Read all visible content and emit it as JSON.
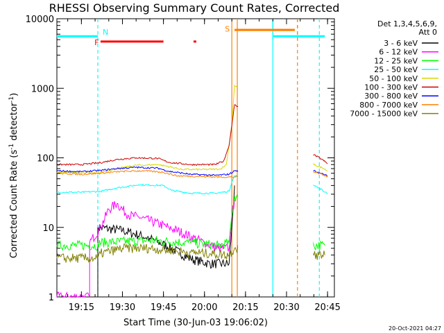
{
  "chart_data": {
    "type": "line",
    "title": "RHESSI Observing Summary Count Rates, Corrected",
    "xlabel": "Start Time (30-Jun-03 19:06:02)",
    "ylabel": "Corrected Count Rate (s",
    "ylabel_sup": "-1",
    "ylabel_mid": " detector",
    "ylabel_sup2": "-1",
    "ylabel_end": ")",
    "y_scale": "log",
    "xlim": [
      "19:06:02",
      "20:47:30"
    ],
    "ylim": [
      1,
      10000
    ],
    "x_ticks": [
      "19:15",
      "19:30",
      "19:45",
      "20:00",
      "20:15",
      "20:30",
      "20:45"
    ],
    "y_ticks": [
      "1",
      "10",
      "100",
      "1000",
      "10000"
    ],
    "grid": false,
    "legend_position": "top-right",
    "legend_header": [
      "Det 1,3,4,5,6,9,",
      "Att 0"
    ],
    "series": [
      {
        "name": "3 - 6 keV",
        "color": "#000000",
        "points": [
          [
            "19:21",
            1
          ],
          [
            "19:21",
            10
          ],
          [
            "19:30",
            9
          ],
          [
            "19:40",
            7
          ],
          [
            "19:48",
            5
          ],
          [
            "19:55",
            3.5
          ],
          [
            "20:02",
            3
          ],
          [
            "20:09",
            3
          ],
          [
            "20:10",
            10
          ],
          [
            "20:11",
            40
          ]
        ]
      },
      {
        "name": "6 - 12 keV",
        "color": "#ff00ff",
        "points": [
          [
            "19:06",
            1
          ],
          [
            "19:18",
            1
          ],
          [
            "19:18",
            6
          ],
          [
            "19:22",
            10
          ],
          [
            "19:25",
            18
          ],
          [
            "19:28",
            22
          ],
          [
            "19:32",
            15
          ],
          [
            "19:36",
            14
          ],
          [
            "19:41",
            12
          ],
          [
            "19:47",
            10
          ],
          [
            "19:53",
            8
          ],
          [
            "20:00",
            6
          ],
          [
            "20:05",
            5
          ],
          [
            "20:09",
            5
          ],
          [
            "20:10",
            15
          ],
          [
            "20:11",
            25
          ]
        ]
      },
      {
        "name": "12 - 25 keV",
        "color": "#00ff00",
        "points": [
          [
            "19:06",
            5.5
          ],
          [
            "19:21",
            5.5
          ],
          [
            "19:21",
            6
          ],
          [
            "19:40",
            6.5
          ],
          [
            "19:55",
            6
          ],
          [
            "20:05",
            5.5
          ],
          [
            "20:09",
            6
          ],
          [
            "20:10",
            15
          ],
          [
            "20:11",
            28
          ],
          [
            "20:40",
            5.5
          ],
          [
            "20:44",
            5.5
          ]
        ]
      },
      {
        "name": "25 - 50 keV",
        "color": "#00ffff",
        "points": [
          [
            "19:06",
            32
          ],
          [
            "19:15",
            32
          ],
          [
            "19:22",
            33
          ],
          [
            "19:28",
            37
          ],
          [
            "19:36",
            41
          ],
          [
            "19:45",
            40
          ],
          [
            "19:48",
            34
          ],
          [
            "19:55",
            31
          ],
          [
            "20:04",
            31
          ],
          [
            "20:09",
            33
          ],
          [
            "20:10",
            45
          ],
          [
            "20:11",
            55
          ],
          [
            "20:40",
            40
          ],
          [
            "20:43",
            35
          ],
          [
            "20:45",
            30
          ]
        ]
      },
      {
        "name": "50 - 100 keV",
        "color": "#d8d800",
        "points": [
          [
            "19:06",
            62
          ],
          [
            "19:21",
            60
          ],
          [
            "19:28",
            70
          ],
          [
            "19:35",
            78
          ],
          [
            "19:43",
            80
          ],
          [
            "19:46",
            76
          ],
          [
            "19:52",
            68
          ],
          [
            "20:00",
            68
          ],
          [
            "20:06",
            69
          ],
          [
            "20:08",
            80
          ],
          [
            "20:10",
            300
          ],
          [
            "20:11",
            1100
          ],
          [
            "20:40",
            80
          ],
          [
            "20:43",
            72
          ],
          [
            "20:45",
            65
          ]
        ]
      },
      {
        "name": "100 - 300 keV",
        "color": "#cc0000",
        "points": [
          [
            "19:06",
            80
          ],
          [
            "19:15",
            80
          ],
          [
            "19:22",
            85
          ],
          [
            "19:28",
            95
          ],
          [
            "19:35",
            100
          ],
          [
            "19:43",
            98
          ],
          [
            "19:47",
            86
          ],
          [
            "19:55",
            80
          ],
          [
            "20:04",
            80
          ],
          [
            "20:07",
            90
          ],
          [
            "20:09",
            150
          ],
          [
            "20:11",
            580
          ],
          [
            "20:40",
            110
          ],
          [
            "20:43",
            95
          ],
          [
            "20:45",
            82
          ]
        ]
      },
      {
        "name": "300 - 800 keV",
        "color": "#0000ff",
        "points": [
          [
            "19:06",
            65
          ],
          [
            "19:15",
            63
          ],
          [
            "19:22",
            66
          ],
          [
            "19:28",
            70
          ],
          [
            "19:35",
            73
          ],
          [
            "19:43",
            71
          ],
          [
            "19:47",
            64
          ],
          [
            "19:55",
            58
          ],
          [
            "20:04",
            56
          ],
          [
            "20:09",
            58
          ],
          [
            "20:11",
            65
          ],
          [
            "20:40",
            65
          ],
          [
            "20:43",
            60
          ],
          [
            "20:45",
            55
          ]
        ]
      },
      {
        "name": "800 - 7000 keV",
        "color": "#ff8000",
        "points": [
          [
            "19:06",
            60
          ],
          [
            "19:15",
            58
          ],
          [
            "19:22",
            60
          ],
          [
            "19:30",
            64
          ],
          [
            "19:38",
            65
          ],
          [
            "19:45",
            62
          ],
          [
            "19:50",
            55
          ],
          [
            "19:58",
            54
          ],
          [
            "20:04",
            53
          ],
          [
            "20:11",
            53
          ],
          [
            "20:40",
            62
          ],
          [
            "20:43",
            58
          ],
          [
            "20:45",
            54
          ]
        ]
      },
      {
        "name": "7000 - 15000 keV",
        "color": "#808000",
        "points": [
          [
            "19:06",
            3.6
          ],
          [
            "19:21",
            3.6
          ],
          [
            "19:22",
            4.2
          ],
          [
            "19:30",
            5
          ],
          [
            "19:40",
            5
          ],
          [
            "19:48",
            4.6
          ],
          [
            "19:55",
            4.4
          ],
          [
            "20:02",
            4.2
          ],
          [
            "20:09",
            4
          ],
          [
            "20:11",
            5
          ],
          [
            "20:40",
            4
          ],
          [
            "20:44",
            4
          ]
        ]
      }
    ],
    "annotations": [
      {
        "label": "F",
        "color": "#ff0000"
      },
      {
        "label": "N",
        "color": "#00ffff"
      },
      {
        "label": "S",
        "color": "#ff8000"
      }
    ],
    "flag_bars": [
      {
        "flag": "N",
        "color": "#00ffff",
        "value": 5600,
        "spans": [
          [
            "19:06",
            "19:21"
          ],
          [
            "20:25",
            "20:44"
          ]
        ]
      },
      {
        "flag": "F",
        "color": "#ff0000",
        "value": 4700,
        "spans": [
          [
            "19:22",
            "19:45"
          ],
          [
            "19:56",
            "19:57"
          ]
        ]
      },
      {
        "flag": "S",
        "color": "#ff8000",
        "value": 6900,
        "spans": [
          [
            "20:11",
            "20:33"
          ]
        ]
      }
    ],
    "markers": [
      {
        "time": "19:21",
        "color": "#00ffff",
        "style": "dashed"
      },
      {
        "time": "20:10",
        "color": "#ff8000",
        "style": "solid"
      },
      {
        "time": "20:12",
        "color": "#ff8000",
        "style": "solid"
      },
      {
        "time": "20:25",
        "color": "#00ffff",
        "style": "solid"
      },
      {
        "time": "20:34",
        "color": "#ff8000",
        "style": "dashed"
      },
      {
        "time": "20:42",
        "color": "#00ffff",
        "style": "dashed"
      }
    ],
    "footer_timestamp": "20-Oct-2021 04:27"
  }
}
